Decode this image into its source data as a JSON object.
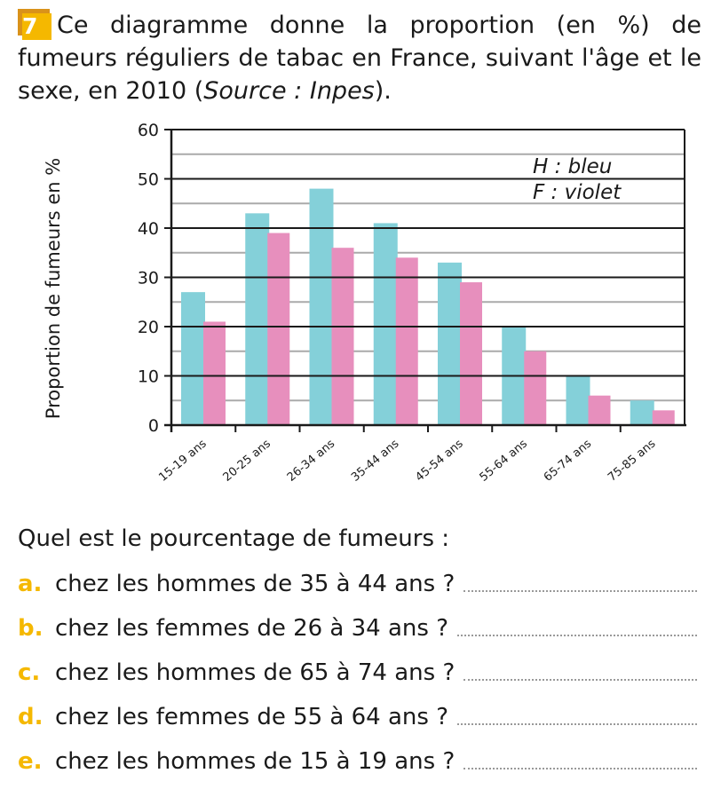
{
  "exercise": {
    "number": "7",
    "text_a": "Ce diagramme donne la proportion (en %) de fumeurs réguliers de tabac en France, suivant l'âge et le sexe, en 2010 (",
    "source": "Source : Inpes",
    "text_b": ")."
  },
  "chart_data": {
    "type": "bar",
    "ylabel": "Proportion de fumeurs en %",
    "ylim": [
      0,
      60
    ],
    "yticks": [
      0,
      10,
      20,
      30,
      40,
      50,
      60
    ],
    "grid": true,
    "categories": [
      "15-19 ans",
      "20-25 ans",
      "26-34 ans",
      "35-44 ans",
      "45-54 ans",
      "55-64 ans",
      "65-74 ans",
      "75-85 ans"
    ],
    "series": [
      {
        "name": "H",
        "legend": "H  : bleu",
        "color": "#84d0d9",
        "values": [
          27,
          43,
          48,
          41,
          33,
          20,
          10,
          5
        ]
      },
      {
        "name": "F",
        "legend": "F  : violet",
        "color": "#e78fbd",
        "values": [
          21,
          39,
          36,
          34,
          29,
          15,
          6,
          3
        ]
      }
    ],
    "legend_placement": "top-right"
  },
  "questions": {
    "prompt": "Quel est le pourcentage de fumeurs :",
    "items": [
      {
        "letter": "a.",
        "text": "chez les hommes de 35 à 44 ans ?"
      },
      {
        "letter": "b.",
        "text": "chez les femmes de 26 à 34 ans ?"
      },
      {
        "letter": "c.",
        "text": "chez les hommes de 65 à 74 ans ?"
      },
      {
        "letter": "d.",
        "text": "chez les femmes de 55 à 64 ans ?"
      },
      {
        "letter": "e.",
        "text": "chez les hommes de 15 à 19 ans ?"
      }
    ]
  }
}
